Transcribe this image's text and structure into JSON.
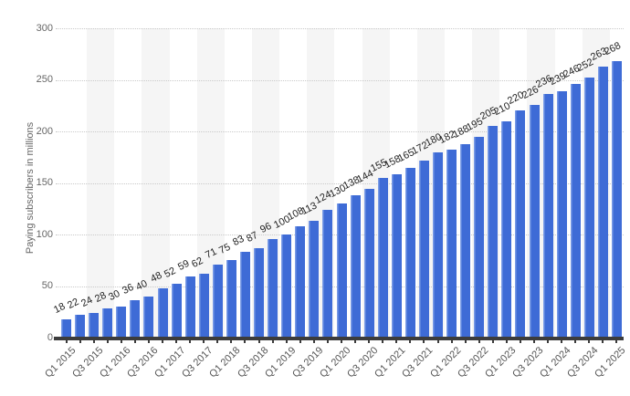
{
  "chart_data": {
    "type": "bar",
    "title": "",
    "xlabel": "",
    "ylabel": "Paying subscribers in millions",
    "values": [
      18,
      22,
      24,
      28,
      30,
      36,
      40,
      48,
      52,
      59,
      62,
      71,
      75,
      83,
      87,
      96,
      100,
      108,
      113,
      124,
      130,
      138,
      144,
      155,
      158,
      165,
      172,
      180,
      182,
      188,
      195,
      205,
      210,
      220,
      226,
      236,
      239,
      246,
      252,
      263,
      268
    ],
    "bar_value_labels": [
      "18",
      "22",
      "24",
      "28",
      "30",
      "36",
      "40",
      "48",
      "52",
      "59",
      "62",
      "71",
      "75",
      "83",
      "87",
      "96",
      "100",
      "108",
      "113",
      "124",
      "130",
      "138",
      "144",
      "155",
      "158",
      "165",
      "172",
      "180",
      "182",
      "188",
      "195",
      "205",
      "210",
      "220",
      "226",
      "236",
      "239",
      "246",
      "252",
      "263",
      "268"
    ],
    "x_tick_labels": [
      "Q1 2015",
      "Q3 2015",
      "Q1 2016",
      "Q3 2016",
      "Q1 2017",
      "Q3 2017",
      "Q1 2018",
      "Q3 2018",
      "Q1 2019",
      "Q3 2019",
      "Q1 2020",
      "Q3 2020",
      "Q1 2021",
      "Q3 2021",
      "Q1 2022",
      "Q3 2022",
      "Q1 2023",
      "Q3 2023",
      "Q1 2024",
      "Q3 2024",
      "Q1 2025"
    ],
    "x_tick_every_n_bars": 2,
    "y_ticks": [
      0,
      50,
      100,
      150,
      200,
      250,
      300
    ],
    "ylim": [
      0,
      300
    ],
    "grid": "horizontal-dotted",
    "legend": "none",
    "colors": {
      "bar": "#3e6bd6",
      "bar_edge_highlight": "#7b9ce7",
      "background_stripe": "#f5f5f5",
      "gridline": "#c9c9c9",
      "axis_line": "#3c3c3c",
      "value_label": "#222222",
      "tick_label": "#666666"
    }
  }
}
